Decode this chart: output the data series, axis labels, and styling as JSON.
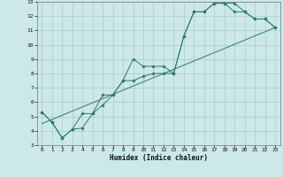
{
  "title": "",
  "xlabel": "Humidex (Indice chaleur)",
  "bg_color": "#cce8e8",
  "grid_color": "#aacccc",
  "line_color": "#2d7a6a",
  "xlim": [
    -0.5,
    23.5
  ],
  "ylim": [
    3,
    13
  ],
  "xticks": [
    0,
    1,
    2,
    3,
    4,
    5,
    6,
    7,
    8,
    9,
    10,
    11,
    12,
    13,
    14,
    15,
    16,
    17,
    18,
    19,
    20,
    21,
    22,
    23
  ],
  "yticks": [
    3,
    4,
    5,
    6,
    7,
    8,
    9,
    10,
    11,
    12,
    13
  ],
  "series1": [
    [
      0,
      5.3
    ],
    [
      1,
      4.6
    ],
    [
      2,
      3.5
    ],
    [
      3,
      4.1
    ],
    [
      4,
      4.2
    ],
    [
      5,
      5.2
    ],
    [
      6,
      5.8
    ],
    [
      7,
      6.5
    ],
    [
      8,
      7.5
    ],
    [
      9,
      7.5
    ],
    [
      10,
      7.8
    ],
    [
      11,
      8.0
    ],
    [
      12,
      8.0
    ],
    [
      13,
      8.0
    ],
    [
      14,
      10.6
    ],
    [
      15,
      12.3
    ],
    [
      16,
      12.3
    ],
    [
      17,
      12.9
    ],
    [
      18,
      12.9
    ],
    [
      19,
      12.9
    ],
    [
      20,
      12.3
    ],
    [
      21,
      11.8
    ],
    [
      22,
      11.8
    ],
    [
      23,
      11.2
    ]
  ],
  "series2": [
    [
      0,
      5.3
    ],
    [
      1,
      4.6
    ],
    [
      2,
      3.5
    ],
    [
      3,
      4.1
    ],
    [
      4,
      5.2
    ],
    [
      5,
      5.2
    ],
    [
      6,
      6.5
    ],
    [
      7,
      6.5
    ],
    [
      8,
      7.5
    ],
    [
      9,
      9.0
    ],
    [
      10,
      8.5
    ],
    [
      11,
      8.5
    ],
    [
      12,
      8.5
    ],
    [
      13,
      8.0
    ],
    [
      14,
      10.6
    ],
    [
      15,
      12.3
    ],
    [
      16,
      12.3
    ],
    [
      17,
      12.9
    ],
    [
      18,
      12.9
    ],
    [
      19,
      12.3
    ],
    [
      20,
      12.3
    ],
    [
      21,
      11.8
    ],
    [
      22,
      11.8
    ],
    [
      23,
      11.2
    ]
  ],
  "series_linear": [
    [
      0,
      4.5
    ],
    [
      23,
      11.2
    ]
  ]
}
